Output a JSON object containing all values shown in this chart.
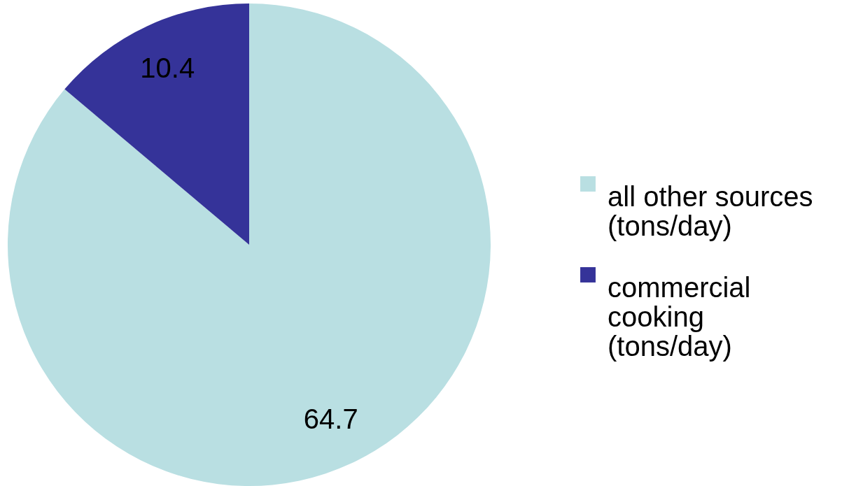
{
  "chart_data": {
    "type": "pie",
    "categories": [
      "all other sources (tons/day)",
      "commercial cooking (tons/day)"
    ],
    "values": [
      64.7,
      10.4
    ],
    "colors": [
      "#b9dfe2",
      "#353399"
    ],
    "data_labels": true,
    "legend": "right"
  }
}
